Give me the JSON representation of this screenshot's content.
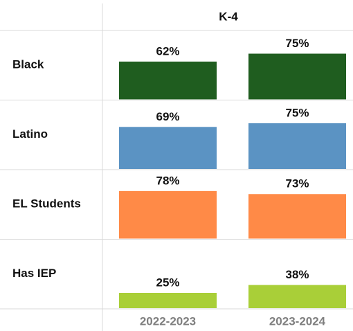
{
  "chart_data": {
    "type": "bar",
    "title": "K-4",
    "categories": [
      "2022-2023",
      "2023-2024"
    ],
    "ylim": [
      0,
      100
    ],
    "series": [
      {
        "name": "Black",
        "color": "#1f5d1f",
        "values": [
          62,
          75
        ],
        "value_labels": [
          "62%",
          "75%"
        ]
      },
      {
        "name": "Latino",
        "color": "#5b93c3",
        "values": [
          69,
          75
        ],
        "value_labels": [
          "69%",
          "75%"
        ]
      },
      {
        "name": "EL Students",
        "color": "#ff8a47",
        "values": [
          78,
          73
        ],
        "value_labels": [
          "78%",
          "73%"
        ]
      },
      {
        "name": "Has IEP",
        "color": "#a9cf38",
        "values": [
          25,
          38
        ],
        "value_labels": [
          "25%",
          "38%"
        ]
      }
    ]
  }
}
